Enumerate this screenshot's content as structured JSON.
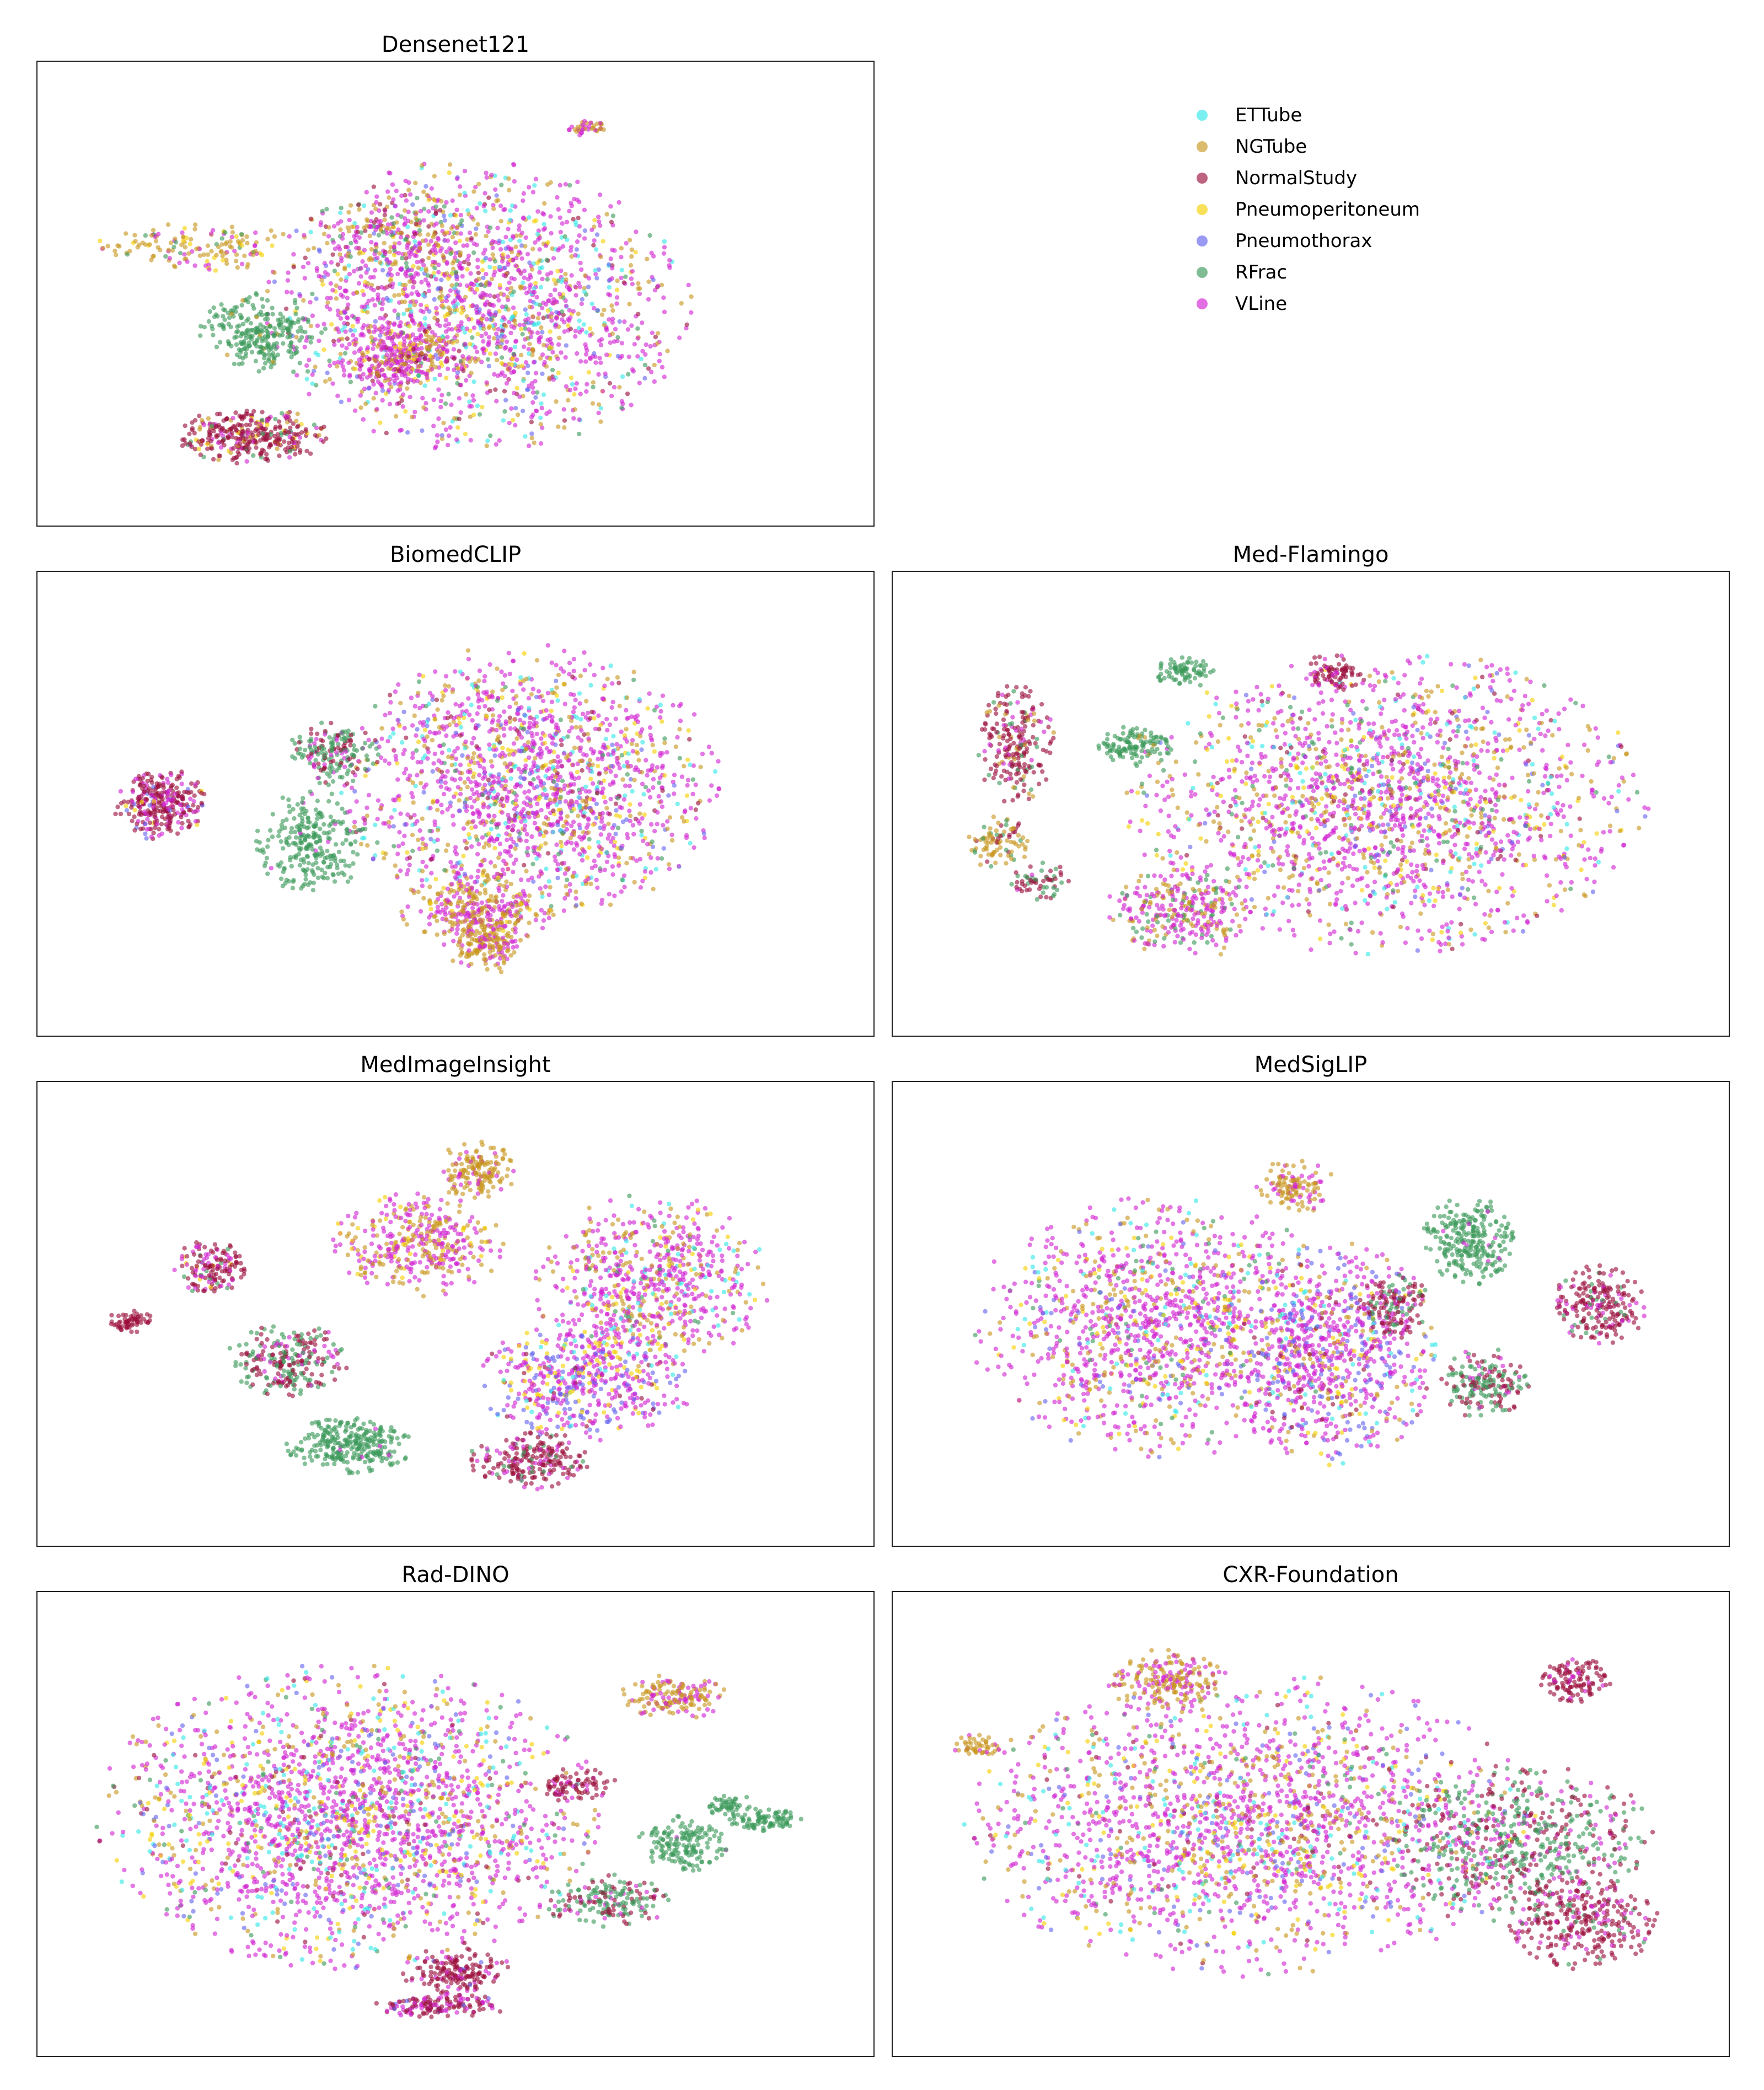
{
  "legend": {
    "placement": "top-right",
    "items": [
      {
        "label": "ETTube",
        "color": "#33e6e6"
      },
      {
        "label": "NGTube",
        "color": "#c8961e"
      },
      {
        "label": "NormalStudy",
        "color": "#9b0f3c"
      },
      {
        "label": "Pneumoperitoneum",
        "color": "#f5d000"
      },
      {
        "label": "Pneumothorax",
        "color": "#6464f0"
      },
      {
        "label": "RFrac",
        "color": "#3c9a5a"
      },
      {
        "label": "VLine",
        "color": "#d223d2"
      }
    ]
  },
  "chart_data": [
    {
      "type": "scatter",
      "title": "Densenet121",
      "grid": false,
      "axes_visible": false,
      "clusters": [
        {
          "x": 0.53,
          "y": 0.53,
          "rx": 0.27,
          "ry": 0.36,
          "n": 1800,
          "mix": {
            "VLine": 0.52,
            "NGTube": 0.15,
            "Pneumoperitoneum": 0.08,
            "ETTube": 0.08,
            "Pneumothorax": 0.06,
            "RFrac": 0.06,
            "NormalStudy": 0.05
          }
        },
        {
          "x": 0.42,
          "y": 0.35,
          "rx": 0.12,
          "ry": 0.12,
          "n": 200,
          "mix": {
            "NGTube": 0.35,
            "VLine": 0.35,
            "NormalStudy": 0.15,
            "RFrac": 0.15
          }
        },
        {
          "x": 0.16,
          "y": 0.38,
          "rx": 0.13,
          "ry": 0.06,
          "n": 150,
          "mix": {
            "NGTube": 0.55,
            "VLine": 0.25,
            "Pneumoperitoneum": 0.1,
            "RFrac": 0.1
          }
        },
        {
          "x": 0.24,
          "y": 0.6,
          "rx": 0.08,
          "ry": 0.1,
          "n": 260,
          "mix": {
            "RFrac": 0.95,
            "NGTube": 0.05
          }
        },
        {
          "x": 0.42,
          "y": 0.66,
          "rx": 0.08,
          "ry": 0.09,
          "n": 300,
          "mix": {
            "VLine": 0.6,
            "NGTube": 0.25,
            "Pneumoperitoneum": 0.1,
            "NormalStudy": 0.05
          }
        },
        {
          "x": 0.23,
          "y": 0.87,
          "rx": 0.1,
          "ry": 0.07,
          "n": 340,
          "mix": {
            "NormalStudy": 0.65,
            "VLine": 0.15,
            "NGTube": 0.1,
            "RFrac": 0.05,
            "Pneumoperitoneum": 0.05
          }
        },
        {
          "x": 0.67,
          "y": 0.07,
          "rx": 0.03,
          "ry": 0.02,
          "n": 40,
          "mix": {
            "VLine": 0.6,
            "NGTube": 0.4
          }
        }
      ]
    },
    {
      "type": "scatter",
      "title": "BiomedCLIP",
      "grid": false,
      "axes_visible": false,
      "clusters": [
        {
          "x": 0.6,
          "y": 0.45,
          "rx": 0.24,
          "ry": 0.35,
          "n": 1700,
          "mix": {
            "VLine": 0.55,
            "NGTube": 0.18,
            "Pneumoperitoneum": 0.07,
            "ETTube": 0.07,
            "Pneumothorax": 0.05,
            "RFrac": 0.04,
            "NormalStudy": 0.04
          }
        },
        {
          "x": 0.53,
          "y": 0.77,
          "rx": 0.1,
          "ry": 0.1,
          "n": 280,
          "mix": {
            "NGTube": 0.5,
            "VLine": 0.45,
            "Pneumoperitoneum": 0.05
          }
        },
        {
          "x": 0.54,
          "y": 0.86,
          "rx": 0.05,
          "ry": 0.08,
          "n": 180,
          "mix": {
            "NGTube": 0.7,
            "VLine": 0.3
          }
        },
        {
          "x": 0.34,
          "y": 0.37,
          "rx": 0.06,
          "ry": 0.08,
          "n": 180,
          "mix": {
            "RFrac": 0.5,
            "NormalStudy": 0.35,
            "VLine": 0.15
          }
        },
        {
          "x": 0.31,
          "y": 0.6,
          "rx": 0.07,
          "ry": 0.13,
          "n": 260,
          "mix": {
            "RFrac": 0.95,
            "VLine": 0.05
          }
        },
        {
          "x": 0.11,
          "y": 0.5,
          "rx": 0.06,
          "ry": 0.09,
          "n": 300,
          "mix": {
            "NormalStudy": 0.65,
            "VLine": 0.25,
            "Pneumothorax": 0.05,
            "Pneumoperitoneum": 0.05
          }
        }
      ]
    },
    {
      "type": "scatter",
      "title": "Med-Flamingo",
      "grid": false,
      "axes_visible": false,
      "clusters": [
        {
          "x": 0.6,
          "y": 0.5,
          "rx": 0.33,
          "ry": 0.38,
          "n": 1900,
          "mix": {
            "VLine": 0.55,
            "NGTube": 0.17,
            "Pneumoperitoneum": 0.07,
            "ETTube": 0.07,
            "Pneumothorax": 0.05,
            "RFrac": 0.05,
            "NormalStudy": 0.04
          }
        },
        {
          "x": 0.33,
          "y": 0.78,
          "rx": 0.1,
          "ry": 0.12,
          "n": 300,
          "mix": {
            "VLine": 0.55,
            "NGTube": 0.3,
            "RFrac": 0.15
          }
        },
        {
          "x": 0.27,
          "y": 0.35,
          "rx": 0.05,
          "ry": 0.05,
          "n": 120,
          "mix": {
            "RFrac": 0.95,
            "NGTube": 0.05
          }
        },
        {
          "x": 0.33,
          "y": 0.16,
          "rx": 0.04,
          "ry": 0.04,
          "n": 80,
          "mix": {
            "RFrac": 0.95,
            "NGTube": 0.05
          }
        },
        {
          "x": 0.11,
          "y": 0.35,
          "rx": 0.05,
          "ry": 0.15,
          "n": 220,
          "mix": {
            "NormalStudy": 0.7,
            "RFrac": 0.1,
            "NGTube": 0.1,
            "VLine": 0.1
          }
        },
        {
          "x": 0.09,
          "y": 0.6,
          "rx": 0.04,
          "ry": 0.07,
          "n": 90,
          "mix": {
            "NGTube": 0.6,
            "NormalStudy": 0.2,
            "RFrac": 0.2
          }
        },
        {
          "x": 0.14,
          "y": 0.7,
          "rx": 0.04,
          "ry": 0.05,
          "n": 60,
          "mix": {
            "NormalStudy": 0.6,
            "RFrac": 0.3,
            "VLine": 0.1
          }
        },
        {
          "x": 0.53,
          "y": 0.16,
          "rx": 0.04,
          "ry": 0.05,
          "n": 80,
          "mix": {
            "NormalStudy": 0.8,
            "VLine": 0.2
          }
        }
      ]
    },
    {
      "type": "scatter",
      "title": "MedImageInsight",
      "grid": false,
      "axes_visible": false,
      "clusters": [
        {
          "x": 0.76,
          "y": 0.42,
          "rx": 0.15,
          "ry": 0.22,
          "n": 700,
          "mix": {
            "VLine": 0.6,
            "NGTube": 0.2,
            "ETTube": 0.08,
            "Pneumoperitoneum": 0.06,
            "RFrac": 0.06
          }
        },
        {
          "x": 0.67,
          "y": 0.68,
          "rx": 0.14,
          "ry": 0.15,
          "n": 520,
          "mix": {
            "VLine": 0.55,
            "Pneumothorax": 0.2,
            "Pneumoperitoneum": 0.15,
            "ETTube": 0.05,
            "NormalStudy": 0.05
          }
        },
        {
          "x": 0.45,
          "y": 0.32,
          "rx": 0.11,
          "ry": 0.13,
          "n": 380,
          "mix": {
            "VLine": 0.5,
            "NGTube": 0.4,
            "Pneumoperitoneum": 0.1
          }
        },
        {
          "x": 0.53,
          "y": 0.13,
          "rx": 0.05,
          "ry": 0.08,
          "n": 160,
          "mix": {
            "NGTube": 0.75,
            "VLine": 0.25
          }
        },
        {
          "x": 0.6,
          "y": 0.88,
          "rx": 0.08,
          "ry": 0.07,
          "n": 220,
          "mix": {
            "NormalStudy": 0.65,
            "RFrac": 0.15,
            "VLine": 0.2
          }
        },
        {
          "x": 0.36,
          "y": 0.84,
          "rx": 0.08,
          "ry": 0.07,
          "n": 280,
          "mix": {
            "RFrac": 0.97,
            "VLine": 0.03
          }
        },
        {
          "x": 0.28,
          "y": 0.62,
          "rx": 0.08,
          "ry": 0.09,
          "n": 250,
          "mix": {
            "NormalStudy": 0.45,
            "RFrac": 0.45,
            "VLine": 0.1
          }
        },
        {
          "x": 0.18,
          "y": 0.38,
          "rx": 0.05,
          "ry": 0.07,
          "n": 150,
          "mix": {
            "NormalStudy": 0.6,
            "VLine": 0.25,
            "Pneumoperitoneum": 0.05,
            "RFrac": 0.1
          }
        },
        {
          "x": 0.07,
          "y": 0.52,
          "rx": 0.03,
          "ry": 0.03,
          "n": 60,
          "mix": {
            "NormalStudy": 1.0
          }
        }
      ]
    },
    {
      "type": "scatter",
      "title": "MedSigLIP",
      "grid": false,
      "axes_visible": false,
      "clusters": [
        {
          "x": 0.3,
          "y": 0.53,
          "rx": 0.24,
          "ry": 0.33,
          "n": 1300,
          "mix": {
            "VLine": 0.58,
            "NGTube": 0.18,
            "Pneumoperitoneum": 0.07,
            "ETTube": 0.06,
            "Pneumothorax": 0.06,
            "RFrac": 0.05
          }
        },
        {
          "x": 0.53,
          "y": 0.6,
          "rx": 0.13,
          "ry": 0.28,
          "n": 750,
          "mix": {
            "VLine": 0.55,
            "Pneumothorax": 0.2,
            "NGTube": 0.1,
            "ETTube": 0.05,
            "NormalStudy": 0.05,
            "Pneumoperitoneum": 0.05
          }
        },
        {
          "x": 0.48,
          "y": 0.17,
          "rx": 0.05,
          "ry": 0.07,
          "n": 120,
          "mix": {
            "NGTube": 0.7,
            "VLine": 0.3
          }
        },
        {
          "x": 0.71,
          "y": 0.31,
          "rx": 0.06,
          "ry": 0.11,
          "n": 260,
          "mix": {
            "RFrac": 0.97,
            "VLine": 0.03
          }
        },
        {
          "x": 0.61,
          "y": 0.48,
          "rx": 0.05,
          "ry": 0.08,
          "n": 150,
          "mix": {
            "NormalStudy": 0.6,
            "RFrac": 0.2,
            "VLine": 0.2
          }
        },
        {
          "x": 0.73,
          "y": 0.68,
          "rx": 0.06,
          "ry": 0.09,
          "n": 180,
          "mix": {
            "RFrac": 0.5,
            "NormalStudy": 0.4,
            "VLine": 0.1
          }
        },
        {
          "x": 0.88,
          "y": 0.48,
          "rx": 0.06,
          "ry": 0.1,
          "n": 220,
          "mix": {
            "NormalStudy": 0.7,
            "VLine": 0.2,
            "RFrac": 0.1
          }
        }
      ]
    },
    {
      "type": "scatter",
      "title": "Rad-DINO",
      "grid": false,
      "axes_visible": false,
      "clusters": [
        {
          "x": 0.36,
          "y": 0.48,
          "rx": 0.32,
          "ry": 0.38,
          "n": 2200,
          "mix": {
            "VLine": 0.55,
            "NGTube": 0.12,
            "Pneumoperitoneum": 0.08,
            "ETTube": 0.09,
            "Pneumothorax": 0.08,
            "RFrac": 0.04,
            "NormalStudy": 0.04
          }
        },
        {
          "x": 0.79,
          "y": 0.17,
          "rx": 0.07,
          "ry": 0.06,
          "n": 160,
          "mix": {
            "NGTube": 0.6,
            "VLine": 0.4
          }
        },
        {
          "x": 0.8,
          "y": 0.55,
          "rx": 0.06,
          "ry": 0.07,
          "n": 160,
          "mix": {
            "RFrac": 0.97,
            "VLine": 0.03
          }
        },
        {
          "x": 0.91,
          "y": 0.49,
          "rx": 0.05,
          "ry": 0.03,
          "n": 90,
          "mix": {
            "RFrac": 1.0
          }
        },
        {
          "x": 0.86,
          "y": 0.45,
          "rx": 0.03,
          "ry": 0.03,
          "n": 50,
          "mix": {
            "RFrac": 1.0
          }
        },
        {
          "x": 0.7,
          "y": 0.7,
          "rx": 0.08,
          "ry": 0.07,
          "n": 180,
          "mix": {
            "RFrac": 0.6,
            "NormalStudy": 0.3,
            "VLine": 0.1
          }
        },
        {
          "x": 0.5,
          "y": 0.88,
          "rx": 0.07,
          "ry": 0.06,
          "n": 170,
          "mix": {
            "NormalStudy": 0.75,
            "VLine": 0.2,
            "Pneumothorax": 0.05
          }
        },
        {
          "x": 0.48,
          "y": 0.97,
          "rx": 0.09,
          "ry": 0.03,
          "n": 150,
          "mix": {
            "NormalStudy": 0.55,
            "VLine": 0.4,
            "Pneumothorax": 0.05
          }
        },
        {
          "x": 0.66,
          "y": 0.4,
          "rx": 0.05,
          "ry": 0.05,
          "n": 80,
          "mix": {
            "NormalStudy": 0.8,
            "VLine": 0.2
          }
        }
      ]
    },
    {
      "type": "scatter",
      "title": "CXR-Foundation",
      "grid": false,
      "axes_visible": false,
      "clusters": [
        {
          "x": 0.42,
          "y": 0.5,
          "rx": 0.36,
          "ry": 0.38,
          "n": 2000,
          "mix": {
            "VLine": 0.55,
            "NGTube": 0.17,
            "Pneumoperitoneum": 0.07,
            "ETTube": 0.07,
            "Pneumothorax": 0.07,
            "RFrac": 0.03,
            "NormalStudy": 0.04
          }
        },
        {
          "x": 0.31,
          "y": 0.13,
          "rx": 0.08,
          "ry": 0.08,
          "n": 200,
          "mix": {
            "NGTube": 0.7,
            "VLine": 0.3
          }
        },
        {
          "x": 0.78,
          "y": 0.55,
          "rx": 0.17,
          "ry": 0.2,
          "n": 600,
          "mix": {
            "RFrac": 0.5,
            "NormalStudy": 0.3,
            "VLine": 0.2
          }
        },
        {
          "x": 0.85,
          "y": 0.13,
          "rx": 0.05,
          "ry": 0.06,
          "n": 120,
          "mix": {
            "NormalStudy": 0.8,
            "VLine": 0.2
          }
        },
        {
          "x": 0.86,
          "y": 0.75,
          "rx": 0.1,
          "ry": 0.12,
          "n": 300,
          "mix": {
            "NormalStudy": 0.8,
            "VLine": 0.15,
            "RFrac": 0.05
          }
        },
        {
          "x": 0.06,
          "y": 0.3,
          "rx": 0.03,
          "ry": 0.03,
          "n": 50,
          "mix": {
            "NGTube": 0.7,
            "VLine": 0.3
          }
        }
      ]
    }
  ]
}
